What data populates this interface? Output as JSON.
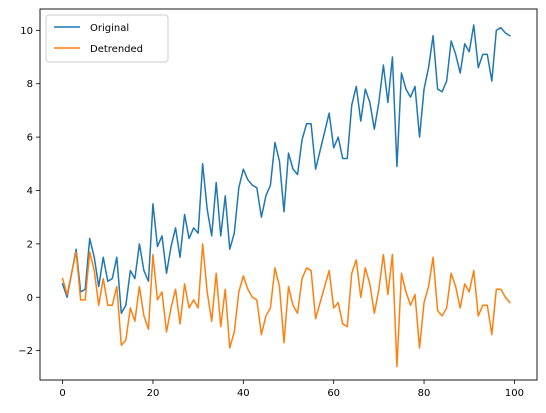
{
  "chart_data": {
    "type": "line",
    "title": "",
    "xlabel": "",
    "ylabel": "",
    "xlim": [
      -5,
      105
    ],
    "ylim": [
      -3.1,
      10.8
    ],
    "xticks": [
      0,
      20,
      40,
      60,
      80,
      100
    ],
    "yticks": [
      -2,
      0,
      2,
      4,
      6,
      8,
      10
    ],
    "grid": false,
    "legend_position": "upper-left",
    "x": [
      0,
      1,
      2,
      3,
      4,
      5,
      6,
      7,
      8,
      9,
      10,
      11,
      12,
      13,
      14,
      15,
      16,
      17,
      18,
      19,
      20,
      21,
      22,
      23,
      24,
      25,
      26,
      27,
      28,
      29,
      30,
      31,
      32,
      33,
      34,
      35,
      36,
      37,
      38,
      39,
      40,
      41,
      42,
      43,
      44,
      45,
      46,
      47,
      48,
      49,
      50,
      51,
      52,
      53,
      54,
      55,
      56,
      57,
      58,
      59,
      60,
      61,
      62,
      63,
      64,
      65,
      66,
      67,
      68,
      69,
      70,
      71,
      72,
      73,
      74,
      75,
      76,
      77,
      78,
      79,
      80,
      81,
      82,
      83,
      84,
      85,
      86,
      87,
      88,
      89,
      90,
      91,
      92,
      93,
      94,
      95,
      96,
      97,
      98,
      99
    ],
    "series": [
      {
        "name": "Original",
        "color": "#1f77b4",
        "values": [
          0.5,
          0.0,
          0.9,
          1.8,
          0.2,
          0.3,
          2.2,
          1.5,
          0.4,
          1.5,
          0.6,
          0.7,
          1.5,
          -0.6,
          -0.3,
          1.0,
          0.7,
          2.0,
          1.0,
          0.6,
          3.5,
          1.9,
          2.3,
          0.9,
          1.9,
          2.6,
          1.5,
          3.1,
          2.2,
          2.6,
          2.4,
          5.0,
          3.3,
          2.3,
          4.3,
          2.3,
          3.8,
          1.8,
          2.4,
          4.1,
          4.8,
          4.4,
          4.2,
          4.1,
          3.0,
          3.8,
          4.2,
          5.8,
          5.1,
          3.2,
          5.4,
          4.8,
          4.6,
          5.9,
          6.5,
          6.5,
          4.8,
          5.5,
          6.2,
          6.9,
          5.6,
          6.0,
          5.2,
          5.2,
          7.2,
          7.9,
          6.6,
          7.8,
          7.3,
          6.3,
          7.3,
          8.7,
          7.3,
          9.0,
          4.9,
          8.4,
          7.8,
          7.5,
          7.9,
          6.0,
          7.8,
          8.6,
          9.8,
          7.8,
          7.7,
          8.1,
          9.6,
          9.1,
          8.4,
          9.5,
          9.2,
          10.2,
          8.6,
          9.1,
          9.1,
          8.1,
          10.0,
          10.1,
          9.9,
          9.8
        ]
      },
      {
        "name": "Detrended",
        "color": "#ff7f0e",
        "values": [
          0.7,
          0.1,
          0.9,
          1.7,
          -0.1,
          -0.1,
          1.7,
          1.0,
          -0.3,
          0.7,
          -0.3,
          -0.3,
          0.4,
          -1.8,
          -1.6,
          -0.4,
          -0.9,
          0.4,
          -0.7,
          -1.2,
          1.6,
          -0.1,
          0.2,
          -1.3,
          -0.4,
          0.3,
          -1.0,
          0.5,
          -0.4,
          -0.1,
          -0.4,
          2.0,
          0.2,
          -0.9,
          0.9,
          -1.1,
          0.3,
          -1.9,
          -1.3,
          0.2,
          0.8,
          0.3,
          0.0,
          -0.1,
          -1.4,
          -0.7,
          -0.4,
          1.1,
          0.4,
          -1.7,
          0.4,
          -0.3,
          -0.6,
          0.7,
          1.1,
          1.0,
          -0.8,
          -0.2,
          0.4,
          1.0,
          -0.4,
          -0.2,
          -1.0,
          -1.1,
          0.9,
          1.4,
          0.0,
          1.1,
          0.5,
          -0.6,
          0.3,
          1.6,
          0.1,
          1.6,
          -2.6,
          0.9,
          0.2,
          -0.3,
          0.1,
          -1.9,
          -0.2,
          0.4,
          1.5,
          -0.5,
          -0.7,
          -0.4,
          0.9,
          0.4,
          -0.4,
          0.5,
          0.2,
          1.0,
          -0.7,
          -0.3,
          -0.3,
          -1.4,
          0.3,
          0.3,
          0.0,
          -0.2
        ]
      }
    ]
  }
}
